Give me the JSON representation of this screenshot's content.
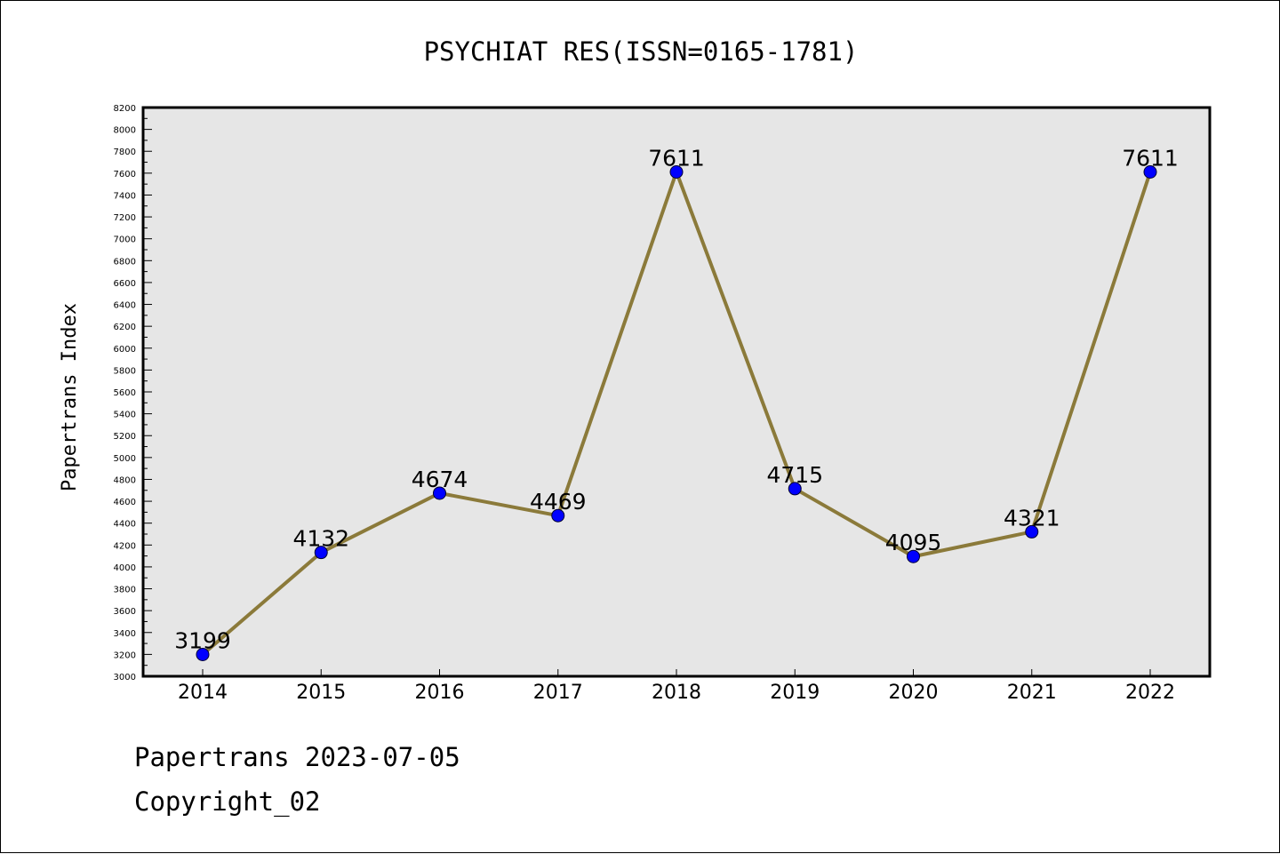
{
  "chart_data": {
    "type": "line",
    "title": "PSYCHIAT RES(ISSN=0165-1781)",
    "xlabel": "",
    "ylabel": "Papertrans Index",
    "categories": [
      "2014",
      "2015",
      "2016",
      "2017",
      "2018",
      "2019",
      "2020",
      "2021",
      "2022"
    ],
    "series": [
      {
        "values": [
          3199,
          4132,
          4674,
          4469,
          7611,
          4715,
          4095,
          4321,
          7611
        ]
      }
    ],
    "ylim": [
      3000,
      8200
    ],
    "yticks": [
      3000,
      3200,
      3400,
      3600,
      3800,
      4000,
      4200,
      4400,
      4600,
      4800,
      5000,
      5200,
      5400,
      5600,
      5800,
      6000,
      6200,
      6400,
      6600,
      6800,
      7000,
      7200,
      7400,
      7600,
      7800,
      8000,
      8200
    ],
    "grid": false,
    "data_labels": true,
    "colors": {
      "line": "#8b7a3a",
      "marker": "#0000ff",
      "plot_background": "#e6e6e6"
    }
  },
  "footer": {
    "date_text": "Papertrans 2023-07-05",
    "copyright_text": "Copyright_02"
  }
}
